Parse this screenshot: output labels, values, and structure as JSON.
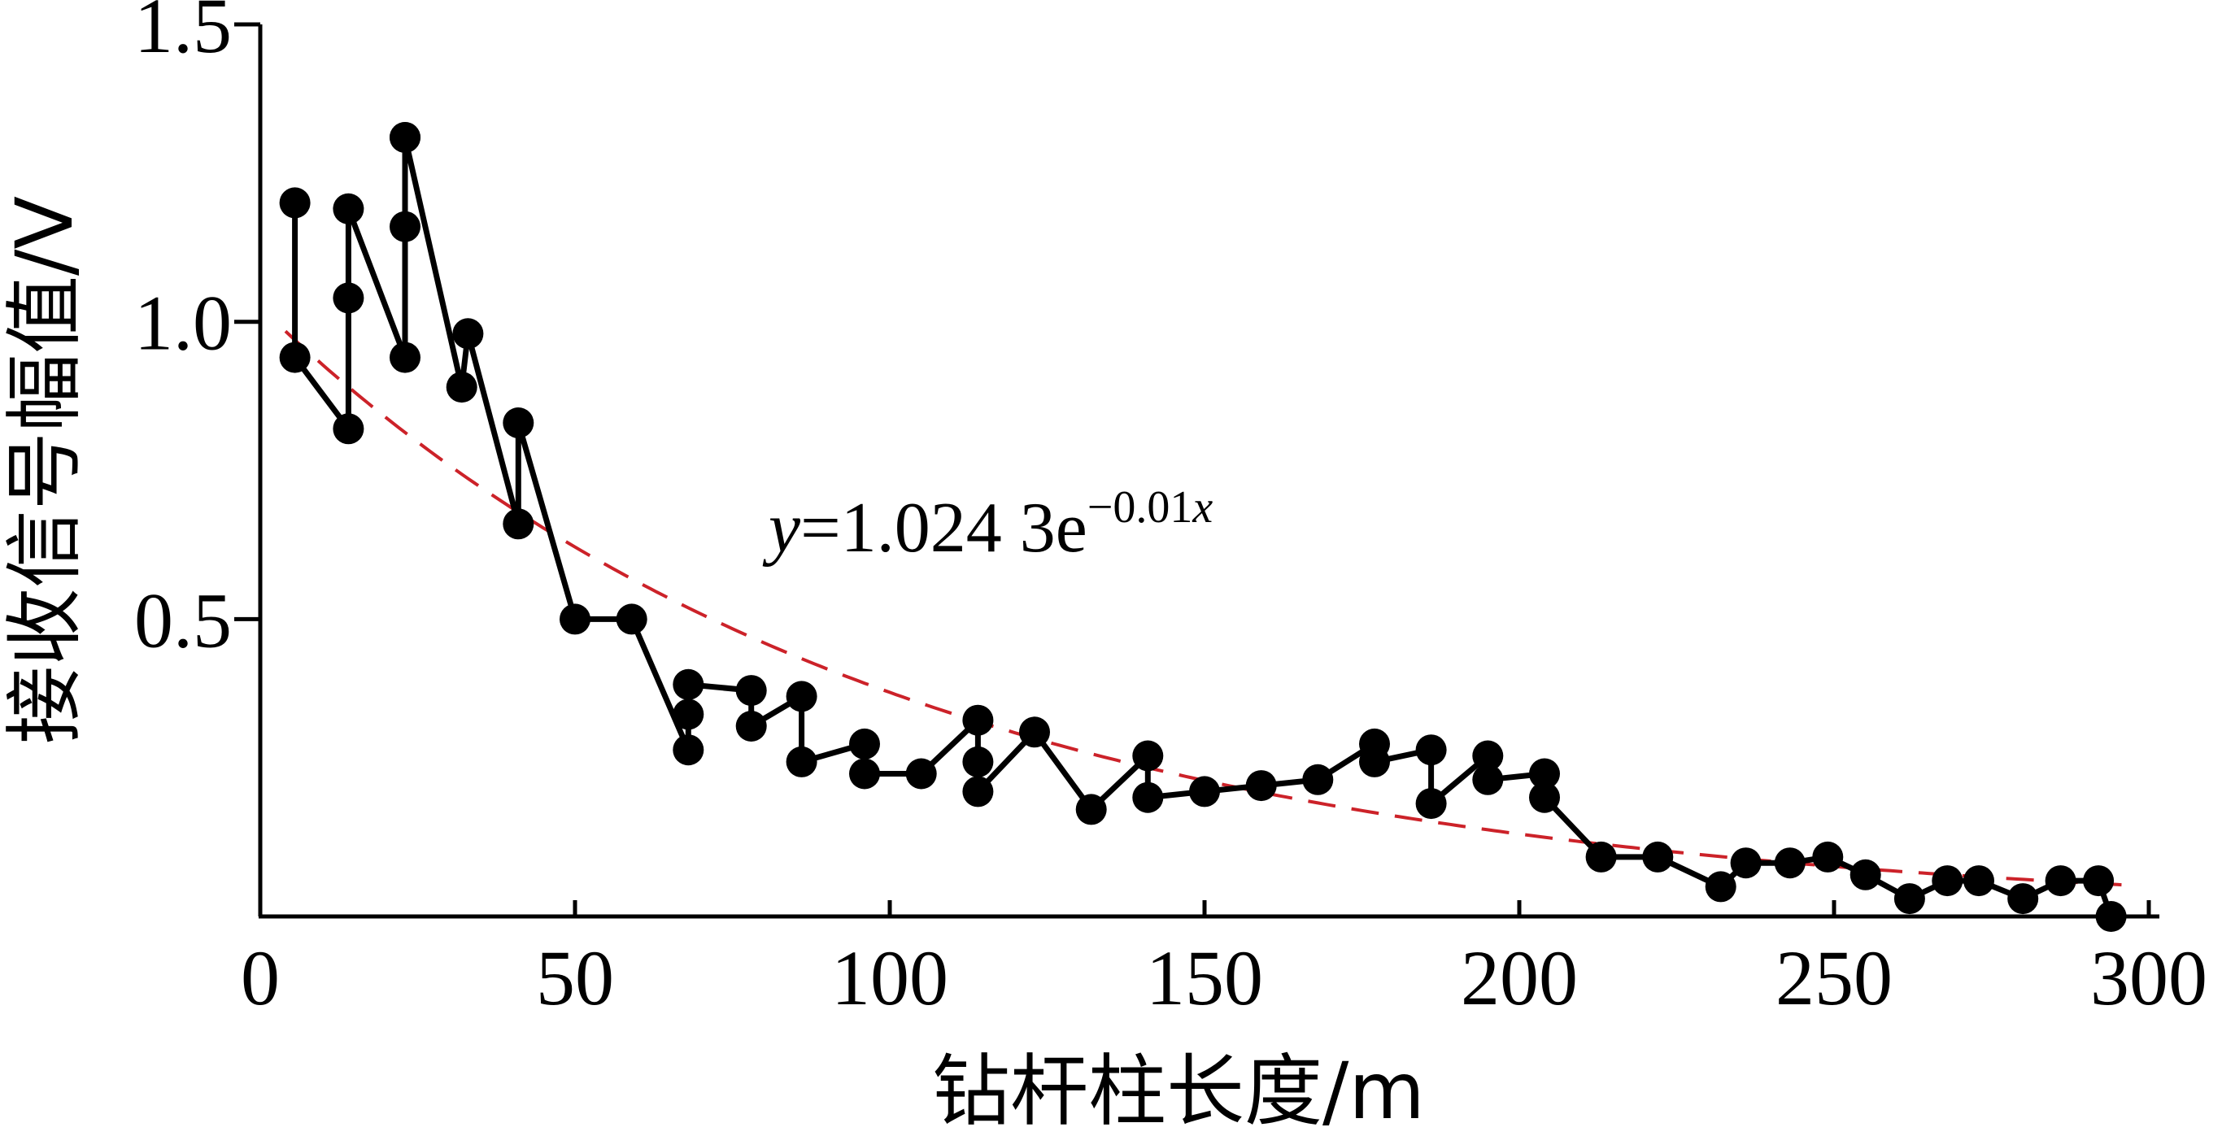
{
  "chart_data": {
    "type": "scatter",
    "title": "",
    "xlabel": "钻杆柱长度/m",
    "ylabel": "接收信号幅值/V",
    "xlim": [
      0,
      300
    ],
    "ylim": [
      0,
      1.5
    ],
    "xticks": [
      0,
      50,
      100,
      150,
      200,
      250,
      300
    ],
    "yticks": [
      0.5,
      1.0,
      1.5
    ],
    "xtick_labels": [
      "0",
      "50",
      "100",
      "150",
      "200",
      "250",
      "300"
    ],
    "ytick_labels": [
      "0.5",
      "1.0",
      "1.5"
    ],
    "grid": false,
    "series": [
      {
        "type": "line-markers",
        "color": "#000000",
        "x": [
          5.5,
          5.5,
          14,
          14,
          14,
          23,
          23,
          23,
          23,
          32,
          33,
          41,
          41,
          50,
          59,
          68,
          68,
          68,
          78,
          78,
          86,
          86,
          96,
          96,
          105,
          114,
          114,
          114,
          123,
          132,
          141,
          141,
          150,
          159,
          168,
          177,
          177,
          186,
          186,
          195,
          195,
          204,
          204,
          213,
          222,
          232,
          236,
          243,
          249,
          255,
          262,
          268,
          273,
          280,
          286,
          292,
          294
        ],
        "y": [
          1.2,
          0.94,
          0.82,
          1.04,
          1.19,
          0.94,
          1.16,
          1.31,
          1.31,
          0.89,
          0.98,
          0.66,
          0.83,
          0.5,
          0.5,
          0.28,
          0.34,
          0.39,
          0.38,
          0.32,
          0.37,
          0.26,
          0.29,
          0.24,
          0.24,
          0.33,
          0.26,
          0.21,
          0.31,
          0.18,
          0.27,
          0.2,
          0.21,
          0.22,
          0.23,
          0.29,
          0.26,
          0.28,
          0.19,
          0.27,
          0.23,
          0.24,
          0.2,
          0.1,
          0.1,
          0.05,
          0.09,
          0.09,
          0.1,
          0.07,
          0.03,
          0.06,
          0.06,
          0.03,
          0.06,
          0.06,
          0.0
        ]
      },
      {
        "type": "fit-line",
        "style": "dashed",
        "color": "#cc2229",
        "equation": "y=1.024 3e^(-0.01x)",
        "a": 1.0243,
        "b": -0.01,
        "x_range": [
          4,
          296
        ]
      }
    ],
    "annotations": [
      {
        "var": "y",
        "coef": "=1.024 3e",
        "exp_num": "−0.01",
        "exp_var": "x"
      }
    ]
  }
}
